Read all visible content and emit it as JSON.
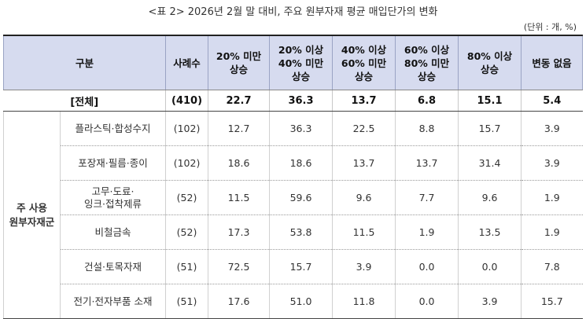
{
  "caption": "<표 2> 2026년 2월 말 대비, 주요 원부자재 평균 매입단가의 변화",
  "unit": "(단위 : 개, %)",
  "headers": {
    "category": "구분",
    "samples": "사례수",
    "col1": [
      "20% 미만",
      "상승"
    ],
    "col2": [
      "20% 이상",
      "40% 미만",
      "상승"
    ],
    "col3": [
      "40% 이상",
      "60% 미만",
      "상승"
    ],
    "col4": [
      "60% 이상",
      "80% 미만",
      "상승"
    ],
    "col5": [
      "80% 이상",
      "상승"
    ],
    "col6": "변동 없음"
  },
  "total": {
    "label": "[전체]",
    "n": "(410)",
    "values": [
      "22.7",
      "36.3",
      "13.7",
      "6.8",
      "15.1",
      "5.4"
    ]
  },
  "group": [
    "주 사용",
    "원부자재군"
  ],
  "rows": [
    {
      "label": [
        "플라스틱·합성수지"
      ],
      "n": "(102)",
      "values": [
        "12.7",
        "36.3",
        "22.5",
        "8.8",
        "15.7",
        "3.9"
      ]
    },
    {
      "label": [
        "포장재·필름·종이"
      ],
      "n": "(102)",
      "values": [
        "18.6",
        "18.6",
        "13.7",
        "13.7",
        "31.4",
        "3.9"
      ]
    },
    {
      "label": [
        "고무·도료·",
        "잉크·접착제류"
      ],
      "n": "(52)",
      "values": [
        "11.5",
        "59.6",
        "9.6",
        "7.7",
        "9.6",
        "1.9"
      ]
    },
    {
      "label": [
        "비철금속"
      ],
      "n": "(52)",
      "values": [
        "17.3",
        "53.8",
        "11.5",
        "1.9",
        "13.5",
        "1.9"
      ]
    },
    {
      "label": [
        "건설·토목자재"
      ],
      "n": "(51)",
      "values": [
        "72.5",
        "15.7",
        "3.9",
        "0.0",
        "0.0",
        "7.8"
      ]
    },
    {
      "label": [
        "전기·전자부품 소재"
      ],
      "n": "(51)",
      "values": [
        "17.6",
        "51.0",
        "11.8",
        "0.0",
        "3.9",
        "15.7"
      ]
    }
  ]
}
